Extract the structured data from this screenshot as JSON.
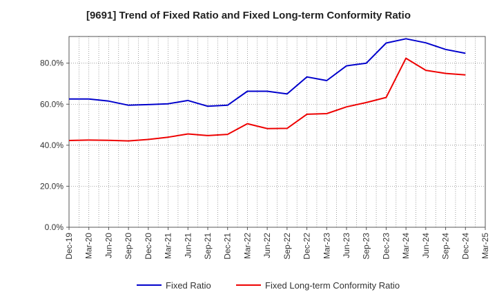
{
  "chart_data": {
    "type": "line",
    "title": "[9691]  Trend of Fixed Ratio and Fixed Long-term Conformity Ratio",
    "xlabel": "",
    "ylabel": "",
    "categories": [
      "Dec-19",
      "Mar-20",
      "Jun-20",
      "Sep-20",
      "Dec-20",
      "Mar-21",
      "Jun-21",
      "Sep-21",
      "Dec-21",
      "Mar-22",
      "Jun-22",
      "Sep-22",
      "Dec-22",
      "Mar-23",
      "Jun-23",
      "Sep-23",
      "Dec-23",
      "Mar-24",
      "Jun-24",
      "Sep-24",
      "Dec-24",
      "Mar-25"
    ],
    "y_ticks": [
      0,
      20,
      40,
      60,
      80
    ],
    "y_tick_labels": [
      "0.0%",
      "20.0%",
      "40.0%",
      "60.0%",
      "80.0%"
    ],
    "ylim": [
      0,
      93
    ],
    "grid": true,
    "legend_position": "bottom",
    "series": [
      {
        "name": "Fixed Ratio",
        "color": "#0000cc",
        "values": [
          62.5,
          62.5,
          61.5,
          59.5,
          59.8,
          60.2,
          61.8,
          59.0,
          59.5,
          66.3,
          66.3,
          65.0,
          73.3,
          71.5,
          78.7,
          80.0,
          89.8,
          91.9,
          89.9,
          86.7,
          84.8,
          null
        ]
      },
      {
        "name": "Fixed Long-term Conformity Ratio",
        "color": "#ee0000",
        "values": [
          42.3,
          42.5,
          42.4,
          42.1,
          42.8,
          43.9,
          45.5,
          44.7,
          45.3,
          50.5,
          48.1,
          48.2,
          55.1,
          55.4,
          58.7,
          60.8,
          63.3,
          82.4,
          76.5,
          75.0,
          74.3,
          null
        ]
      }
    ]
  }
}
